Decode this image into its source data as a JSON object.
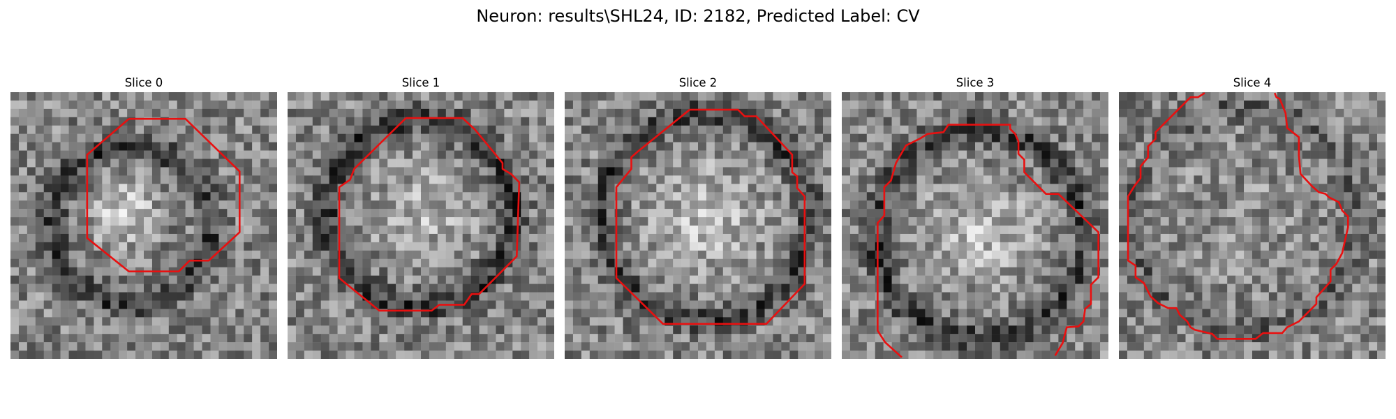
{
  "figure": {
    "title": "Neuron: results\\SHL24, ID: 2182, Predicted Label: CV"
  },
  "image_content": {
    "grid_cells": 32,
    "colormap": "grayscale",
    "contour_color": "#e81010"
  },
  "panels": [
    {
      "label": "Slice 0"
    },
    {
      "label": "Slice 1"
    },
    {
      "label": "Slice 2"
    },
    {
      "label": "Slice 3"
    },
    {
      "label": "Slice 4"
    }
  ]
}
